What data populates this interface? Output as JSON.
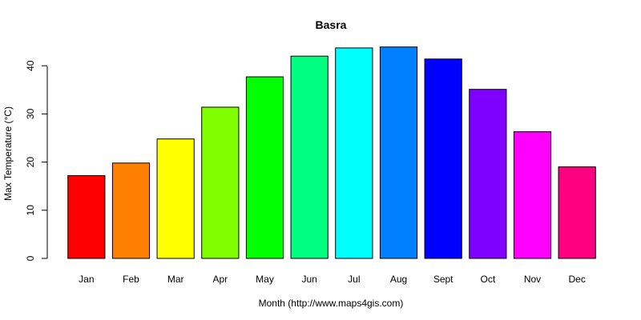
{
  "chart_data": {
    "type": "bar",
    "title": "Basra",
    "xlabel": "Month (http://www.maps4gis.com)",
    "ylabel": "Max Temperature (°C)",
    "categories": [
      "Jan",
      "Feb",
      "Mar",
      "Apr",
      "May",
      "Jun",
      "Jul",
      "Aug",
      "Sept",
      "Oct",
      "Nov",
      "Dec"
    ],
    "values": [
      17.2,
      19.8,
      24.8,
      31.4,
      37.7,
      42.0,
      43.7,
      43.9,
      41.4,
      35.1,
      26.3,
      19.0
    ],
    "colors": [
      "#FF0000",
      "#FF8000",
      "#FFFF00",
      "#80FF00",
      "#00FF00",
      "#00FF80",
      "#00FFFF",
      "#0080FF",
      "#0000FF",
      "#8000FF",
      "#FF00FF",
      "#FF0080"
    ],
    "yticks": [
      0,
      10,
      20,
      30,
      40
    ],
    "ylim": [
      0,
      45
    ],
    "grid": false,
    "legend": "none"
  }
}
